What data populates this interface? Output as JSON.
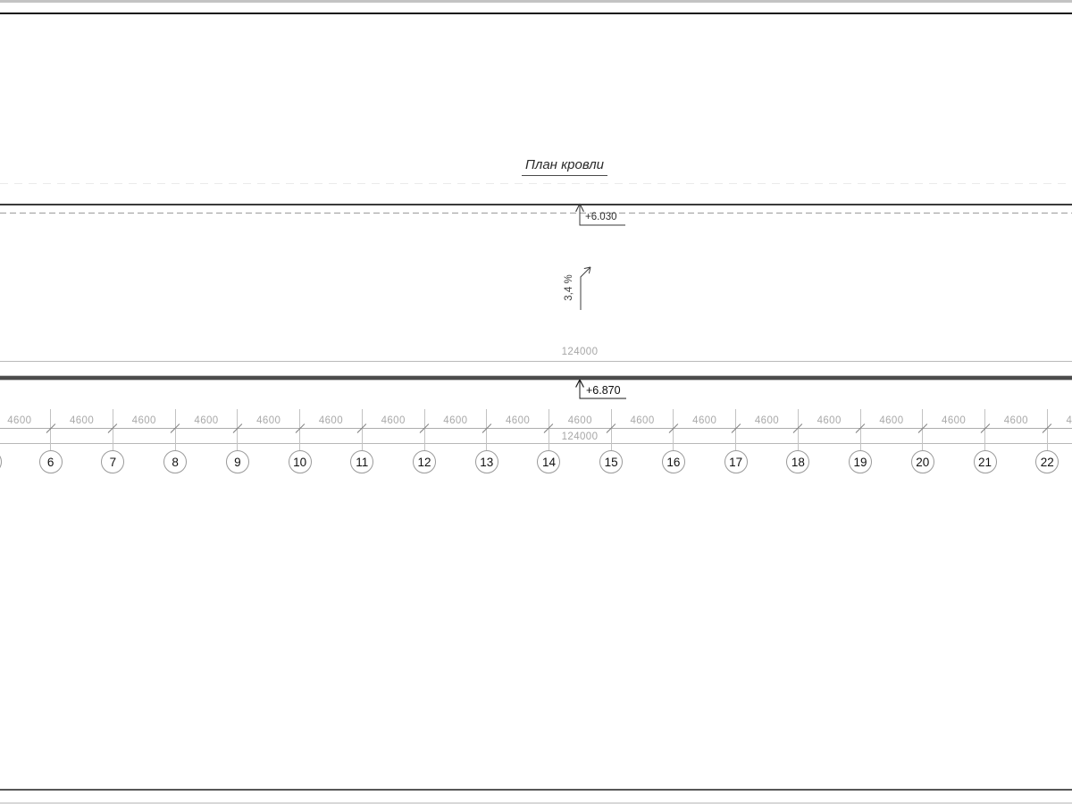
{
  "drawing": {
    "title": "План кровли",
    "upper_edge": {
      "elevation": "+6.030"
    },
    "lower_edge": {
      "elevation": "+6.870"
    },
    "slope_label": "3,4 %",
    "dims": {
      "overall_top": "124000",
      "overall_bottom": "124000",
      "bay": "4600",
      "bay_count": 18
    },
    "grid": {
      "axis_labels": [
        "6",
        "7",
        "8",
        "9",
        "10",
        "11",
        "12",
        "13",
        "14",
        "15",
        "16",
        "17",
        "18",
        "19",
        "20",
        "21",
        "22"
      ],
      "left_clipped_bubble": true
    },
    "colors": {
      "roof_edge_dark": "#3a3a3a",
      "roof_thick_line": "#4c4c4c",
      "dimension_gray": "#a9a9a9",
      "dashed_gray": "#9b9b9b"
    }
  }
}
